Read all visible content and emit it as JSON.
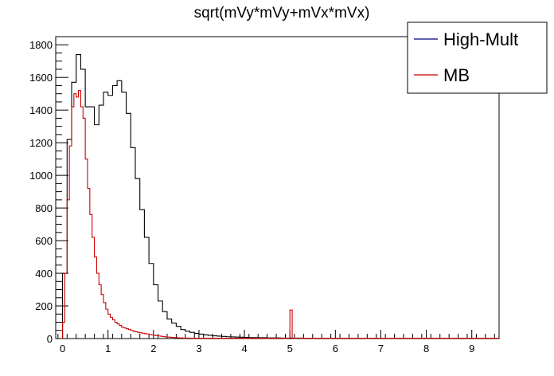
{
  "chart_data": {
    "type": "line",
    "title": "sqrt(mVy*mVy+mVx*mVx)",
    "xlabel": "",
    "ylabel": "",
    "xlim": [
      -0.15,
      9.6
    ],
    "ylim": [
      0,
      1850
    ],
    "x_ticks": [
      0,
      1,
      2,
      3,
      4,
      5,
      6,
      7,
      8,
      9
    ],
    "y_ticks": [
      0,
      200,
      400,
      600,
      800,
      1000,
      1200,
      1400,
      1600,
      1800
    ],
    "grid": false,
    "legend_position": "top-right",
    "series": [
      {
        "name": "High-Mult",
        "legend_color": "#000080",
        "line_color": "#000000",
        "bin_width": 0.1,
        "bin_start": 0,
        "values": [
          400,
          1220,
          1570,
          1740,
          1650,
          1420,
          1420,
          1310,
          1430,
          1510,
          1490,
          1550,
          1580,
          1510,
          1380,
          1170,
          980,
          790,
          620,
          460,
          330,
          230,
          165,
          120,
          95,
          75,
          55,
          45,
          38,
          32,
          27,
          23,
          20,
          17,
          15,
          13,
          11,
          10,
          9,
          8,
          7,
          6,
          6,
          5,
          5,
          4,
          4,
          4,
          3,
          3,
          3,
          3,
          3,
          2,
          2,
          2,
          2,
          2,
          2,
          2,
          2,
          2,
          2,
          2,
          2,
          1,
          1,
          1,
          1,
          1,
          1,
          1,
          1,
          1,
          1,
          1,
          1,
          1,
          1,
          1,
          1,
          1,
          1,
          1,
          1,
          1,
          1,
          1,
          1,
          1,
          1,
          1,
          1,
          1,
          1
        ]
      },
      {
        "name": "MB",
        "legend_color": "#cc0000",
        "line_color": "#cc0000",
        "bin_width": 0.05,
        "bin_start": 0,
        "values": [
          100,
          400,
          850,
          1180,
          1420,
          1500,
          1480,
          1520,
          1420,
          1350,
          1100,
          920,
          760,
          620,
          500,
          400,
          330,
          270,
          220,
          180,
          150,
          130,
          115,
          100,
          90,
          80,
          70,
          65,
          60,
          55,
          50,
          45,
          42,
          38,
          35,
          33,
          30,
          28,
          25,
          23,
          20,
          18,
          16,
          14,
          12,
          10,
          9,
          8,
          7,
          6,
          5,
          4,
          4,
          3,
          3,
          3,
          2,
          2,
          2,
          2,
          2,
          2,
          2,
          2,
          2,
          2,
          2,
          2,
          2,
          2,
          2,
          2,
          2,
          2,
          2,
          2,
          2,
          2,
          2,
          2,
          2,
          2,
          2,
          2,
          2,
          2,
          2,
          2,
          2,
          2,
          2,
          2,
          2,
          2,
          2,
          2,
          2,
          2,
          2,
          2,
          175,
          2,
          2,
          2,
          2,
          2,
          2,
          2,
          2,
          2,
          2,
          2,
          2,
          2,
          2,
          2,
          2,
          2,
          2,
          2,
          2,
          2,
          2,
          2,
          2,
          2,
          2,
          2,
          2,
          2,
          2,
          2,
          2,
          2,
          2,
          2,
          2,
          2,
          2,
          2,
          2,
          2,
          2,
          2,
          2,
          2,
          2,
          2,
          2,
          2,
          2,
          2,
          2,
          2,
          2,
          2,
          2,
          2,
          2,
          2,
          2,
          2,
          2,
          2,
          2,
          2,
          2,
          2,
          2,
          2,
          2,
          2,
          2,
          2,
          2,
          2,
          2,
          2,
          2,
          2,
          2,
          2,
          2,
          2,
          2,
          2,
          2,
          2,
          2,
          2,
          2,
          2
        ]
      }
    ]
  }
}
